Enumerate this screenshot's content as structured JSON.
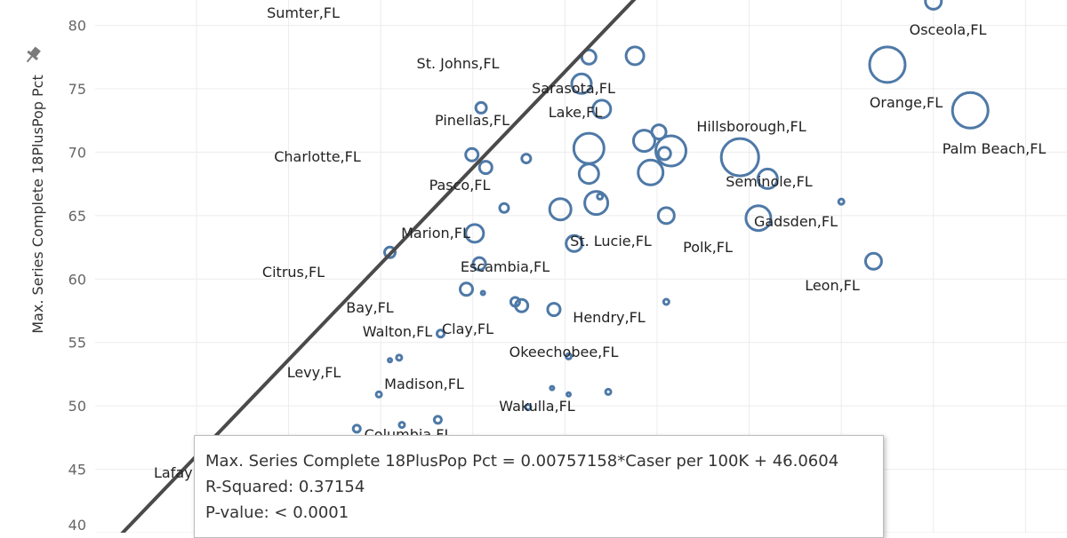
{
  "chart_data": {
    "type": "scatter",
    "ylabel": "Max. Series Complete 18PlusPop Pct",
    "xlabel": "",
    "ylim": [
      40,
      82
    ],
    "xlim": [
      -1100,
      9450
    ],
    "y_ticks": [
      40,
      45,
      50,
      55,
      60,
      65,
      70,
      75,
      80
    ],
    "x_gridlines": [
      0,
      1000,
      2000,
      3000,
      4000,
      5000,
      6000,
      7000,
      8000,
      9000
    ],
    "points": [
      {
        "label": "Osceola,FL",
        "x": 8000,
        "y": 81.9,
        "size": 9
      },
      {
        "label": "Orange,FL",
        "x": 7500,
        "y": 76.9,
        "size": 20
      },
      {
        "label": "Palm Beach,FL",
        "x": 8400,
        "y": 73.3,
        "size": 20
      },
      {
        "label": "Hillsborough,FL",
        "x": 5900,
        "y": 69.6,
        "size": 21
      },
      {
        "label": "Seminole,FL",
        "x": 6200,
        "y": 67.9,
        "size": 11
      },
      {
        "label": "Polk,FL",
        "x": 6100,
        "y": 64.8,
        "size": 14
      },
      {
        "label": "Gadsden,FL",
        "x": 7000,
        "y": 66.1,
        "size": 3
      },
      {
        "label": "Leon,FL",
        "x": 7350,
        "y": 61.4,
        "size": 9
      },
      {
        "label": "St. Lucie,FL",
        "x": 5100,
        "y": 65.0,
        "size": 9
      },
      {
        "label": "Hendry,FL",
        "x": 5100,
        "y": 58.2,
        "size": 3
      },
      {
        "label": "Sarasota,FL",
        "x": 4180,
        "y": 75.4,
        "size": 11
      },
      {
        "label": "Lake,FL",
        "x": 4400,
        "y": 73.4,
        "size": 10
      },
      {
        "label": "St. Johns,FL",
        "x": 4260,
        "y": 77.5,
        "size": 8
      },
      {
        "label": "",
        "x": 4760,
        "y": 77.6,
        "size": 10
      },
      {
        "label": "Pinellas,FL",
        "x": 4260,
        "y": 70.3,
        "size": 17
      },
      {
        "label": "",
        "x": 4860,
        "y": 70.9,
        "size": 12
      },
      {
        "label": "",
        "x": 5020,
        "y": 71.6,
        "size": 8
      },
      {
        "label": "",
        "x": 5150,
        "y": 70.1,
        "size": 17
      },
      {
        "label": "",
        "x": 4930,
        "y": 68.4,
        "size": 14
      },
      {
        "label": "",
        "x": 5080,
        "y": 69.9,
        "size": 7
      },
      {
        "label": "",
        "x": 4260,
        "y": 68.3,
        "size": 11
      },
      {
        "label": "",
        "x": 4340,
        "y": 66.0,
        "size": 13
      },
      {
        "label": "",
        "x": 4380,
        "y": 66.5,
        "size": 3
      },
      {
        "label": "Pasco,FL",
        "x": 3950,
        "y": 65.5,
        "size": 12
      },
      {
        "label": "Escambia,FL",
        "x": 4100,
        "y": 62.8,
        "size": 9
      },
      {
        "label": "Charlotte,FL",
        "x": 2990,
        "y": 69.8,
        "size": 7
      },
      {
        "label": "",
        "x": 3140,
        "y": 68.8,
        "size": 7
      },
      {
        "label": "",
        "x": 3090,
        "y": 73.5,
        "size": 6
      },
      {
        "label": "",
        "x": 3580,
        "y": 69.5,
        "size": 5
      },
      {
        "label": "",
        "x": 3340,
        "y": 65.6,
        "size": 5
      },
      {
        "label": "Marion,FL",
        "x": 3020,
        "y": 63.6,
        "size": 10
      },
      {
        "label": "",
        "x": 3070,
        "y": 61.2,
        "size": 7
      },
      {
        "label": "Citrus,FL",
        "x": 2100,
        "y": 62.1,
        "size": 6
      },
      {
        "label": "Bay,FL",
        "x": 2930,
        "y": 59.2,
        "size": 7
      },
      {
        "label": "",
        "x": 3110,
        "y": 58.9,
        "size": 2
      },
      {
        "label": "",
        "x": 3460,
        "y": 58.2,
        "size": 5
      },
      {
        "label": "",
        "x": 3530,
        "y": 57.9,
        "size": 7
      },
      {
        "label": "Clay,FL",
        "x": 3880,
        "y": 57.6,
        "size": 7
      },
      {
        "label": "Walton,FL",
        "x": 2650,
        "y": 55.7,
        "size": 4
      },
      {
        "label": "Okeechobee,FL",
        "x": 4040,
        "y": 53.9,
        "size": 3
      },
      {
        "label": "Levy,FL",
        "x": 2200,
        "y": 53.8,
        "size": 3
      },
      {
        "label": "",
        "x": 2100,
        "y": 53.6,
        "size": 2
      },
      {
        "label": "",
        "x": 1980,
        "y": 50.9,
        "size": 3
      },
      {
        "label": "Madison,FL",
        "x": 3860,
        "y": 51.4,
        "size": 2
      },
      {
        "label": "",
        "x": 4040,
        "y": 50.9,
        "size": 2
      },
      {
        "label": "Wakulla,FL",
        "x": 4470,
        "y": 51.1,
        "size": 3
      },
      {
        "label": "",
        "x": 3600,
        "y": 49.9,
        "size": 3
      },
      {
        "label": "",
        "x": 2620,
        "y": 48.9,
        "size": 4
      },
      {
        "label": "",
        "x": 1740,
        "y": 48.2,
        "size": 4
      },
      {
        "label": "",
        "x": 2230,
        "y": 48.5,
        "size": 3
      }
    ],
    "partial_labels": [
      {
        "text": "Sumter,FL"
      },
      {
        "text": "Columbia,FL"
      },
      {
        "text": "Lafay"
      }
    ],
    "trend_line": {
      "slope": 0.00757158,
      "intercept": 46.0604
    },
    "tooltip": {
      "equation": "Max. Series Complete 18PlusPop Pct = 0.00757158*Caser per 100K + 46.0604",
      "r_squared": "R-Squared: 0.37154",
      "p_value": "P-value: < 0.0001"
    },
    "colors": {
      "marker": "#4e79a7",
      "trend": "#4a4a4a",
      "grid": "#ececec"
    }
  }
}
